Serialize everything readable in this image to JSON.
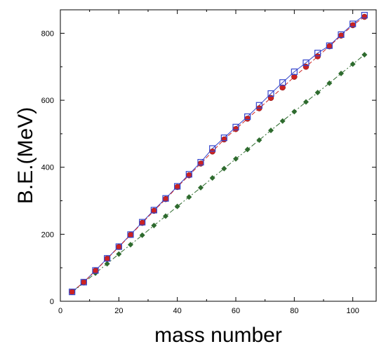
{
  "chart_data": {
    "type": "scatter",
    "xlabel": "mass number",
    "ylabel": "B.E.(MeV)",
    "xlim": [
      0,
      108
    ],
    "ylim": [
      0,
      870
    ],
    "xticks": [
      0,
      20,
      40,
      60,
      80,
      100
    ],
    "yticks": [
      0,
      200,
      400,
      600,
      800
    ],
    "grid": false,
    "legend": "none",
    "x": [
      4,
      8,
      12,
      16,
      20,
      24,
      28,
      32,
      36,
      40,
      44,
      48,
      52,
      56,
      60,
      64,
      68,
      72,
      76,
      80,
      84,
      88,
      92,
      96,
      100,
      104
    ],
    "series": [
      {
        "marker": "open-square",
        "line": "solid",
        "color": "#3344cc",
        "values": [
          28,
          57,
          92,
          128,
          163,
          199,
          236,
          272,
          307,
          343,
          379,
          415,
          456,
          488,
          520,
          551,
          585,
          620,
          653,
          685,
          712,
          741,
          763,
          796,
          828,
          854
        ]
      },
      {
        "marker": "filled-circle",
        "line": "dashed",
        "color": "#cc2222",
        "values": [
          28,
          57,
          91,
          127,
          162,
          198,
          234,
          270,
          305,
          341,
          376,
          411,
          447,
          483,
          514,
          545,
          576,
          607,
          638,
          670,
          700,
          731,
          761,
          793,
          824,
          849
        ]
      },
      {
        "marker": "filled-diamond",
        "line": "dashdot",
        "color": "#2e6b2e",
        "values": [
          27,
          55,
          84,
          112,
          141,
          169,
          197,
          226,
          254,
          283,
          311,
          339,
          368,
          396,
          425,
          453,
          481,
          510,
          538,
          566,
          595,
          623,
          651,
          680,
          708,
          736
        ]
      }
    ]
  }
}
